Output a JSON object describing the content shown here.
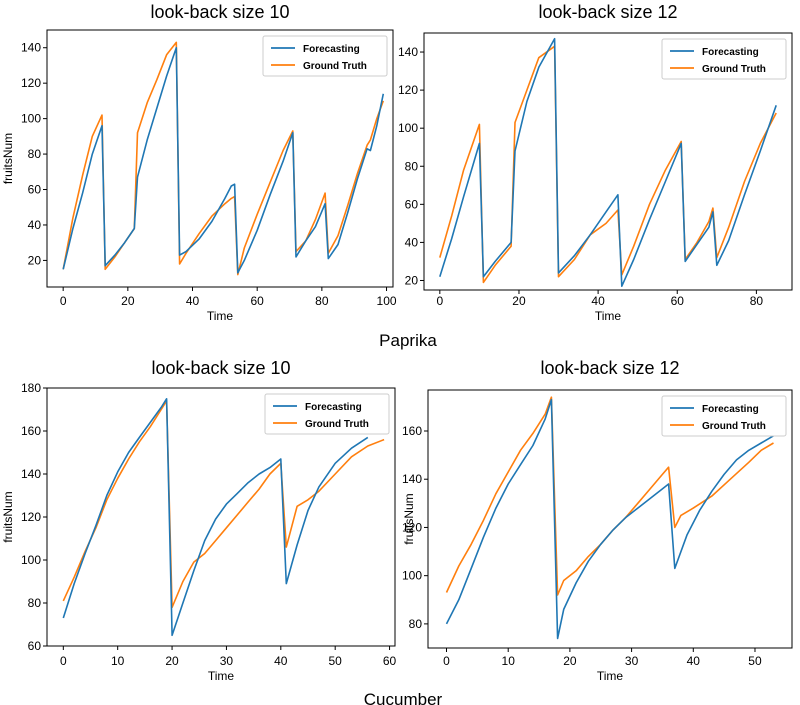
{
  "colors": {
    "forecasting": "#1f77b4",
    "ground_truth": "#ff7f0e"
  },
  "groups": [
    "Paprika",
    "Cucumber"
  ],
  "chart_data": [
    {
      "type": "line",
      "group": "Paprika",
      "title": "look-back  size  10",
      "xlabel": "Time",
      "ylabel": "fruitsNum",
      "xlim": [
        -5,
        102
      ],
      "ylim": [
        5,
        150
      ],
      "xticks": [
        "0",
        "20",
        "40",
        "60",
        "80",
        "100"
      ],
      "xtickvals": [
        0,
        20,
        40,
        60,
        80,
        100
      ],
      "yticks": [
        "20",
        "40",
        "60",
        "80",
        "100",
        "120",
        "140"
      ],
      "ytickvals": [
        20,
        40,
        60,
        80,
        100,
        120,
        140
      ],
      "legend": "top-right",
      "grid": false,
      "series": [
        {
          "name": "Forecasting",
          "x": [
            0,
            3,
            6,
            9,
            12,
            13,
            16,
            19,
            22,
            23,
            26,
            29,
            32,
            35,
            36,
            38,
            42,
            46,
            50,
            52,
            53,
            54,
            56,
            60,
            64,
            68,
            71,
            72,
            75,
            78,
            81,
            82,
            85,
            88,
            91,
            94,
            95,
            97,
            99
          ],
          "y": [
            15,
            38,
            58,
            80,
            96,
            17,
            23,
            30,
            38,
            67,
            88,
            106,
            124,
            140,
            23,
            25,
            32,
            42,
            55,
            62,
            63,
            13,
            20,
            37,
            57,
            76,
            92,
            22,
            31,
            39,
            52,
            21,
            29,
            47,
            66,
            83,
            82,
            96,
            114
          ]
        },
        {
          "name": "Ground Truth",
          "x": [
            0,
            3,
            6,
            9,
            12,
            13,
            16,
            19,
            22,
            23,
            26,
            29,
            32,
            35,
            36,
            38,
            42,
            46,
            50,
            52,
            53,
            54,
            56,
            60,
            64,
            68,
            71,
            72,
            75,
            78,
            81,
            82,
            85,
            88,
            91,
            94,
            95,
            97,
            99
          ],
          "y": [
            15,
            44,
            68,
            90,
            102,
            15,
            22,
            30,
            38,
            92,
            109,
            122,
            136,
            143,
            18,
            24,
            35,
            45,
            52,
            55,
            56,
            12,
            27,
            46,
            64,
            82,
            93,
            25,
            31,
            43,
            58,
            24,
            34,
            51,
            69,
            85,
            88,
            100,
            110
          ]
        }
      ]
    },
    {
      "type": "line",
      "group": "Paprika",
      "title": "look-back  size  12",
      "xlabel": "Time",
      "ylabel": "",
      "xlim": [
        -4,
        89
      ],
      "ylim": [
        15,
        150
      ],
      "xticks": [
        "0",
        "20",
        "40",
        "60",
        "80"
      ],
      "xtickvals": [
        0,
        20,
        40,
        60,
        80
      ],
      "yticks": [
        "20",
        "40",
        "60",
        "80",
        "100",
        "120",
        "140"
      ],
      "ytickvals": [
        20,
        40,
        60,
        80,
        100,
        120,
        140
      ],
      "legend": "top-right",
      "grid": false,
      "series": [
        {
          "name": "Forecasting",
          "x": [
            0,
            3,
            6,
            10,
            11,
            14,
            18,
            19,
            22,
            25,
            29,
            30,
            34,
            38,
            42,
            45,
            46,
            49,
            53,
            57,
            61,
            62,
            65,
            68,
            69,
            70,
            73,
            77,
            81,
            85
          ],
          "y": [
            22,
            42,
            64,
            92,
            22,
            30,
            40,
            88,
            114,
            132,
            147,
            24,
            33,
            44,
            56,
            65,
            17,
            31,
            52,
            72,
            92,
            30,
            39,
            48,
            56,
            28,
            41,
            65,
            88,
            112
          ]
        },
        {
          "name": "Ground Truth",
          "x": [
            0,
            3,
            6,
            10,
            11,
            14,
            18,
            19,
            22,
            25,
            29,
            30,
            34,
            38,
            42,
            45,
            46,
            49,
            53,
            57,
            61,
            62,
            65,
            68,
            69,
            70,
            73,
            77,
            81,
            85
          ],
          "y": [
            32,
            54,
            78,
            102,
            19,
            28,
            38,
            103,
            120,
            137,
            143,
            22,
            31,
            44,
            50,
            57,
            23,
            38,
            60,
            78,
            93,
            31,
            40,
            51,
            58,
            32,
            48,
            72,
            92,
            108
          ]
        }
      ]
    },
    {
      "type": "line",
      "group": "Cucumber",
      "title": "look-back  size  10",
      "xlabel": "Time",
      "ylabel": "fruitsNum",
      "xlim": [
        -3,
        61
      ],
      "ylim": [
        60,
        180
      ],
      "xticks": [
        "0",
        "10",
        "20",
        "30",
        "40",
        "50",
        "60"
      ],
      "xtickvals": [
        0,
        10,
        20,
        30,
        40,
        50,
        60
      ],
      "yticks": [
        "60",
        "80",
        "100",
        "120",
        "140",
        "160",
        "180"
      ],
      "ytickvals": [
        60,
        80,
        100,
        120,
        140,
        160,
        180
      ],
      "legend": "top-right",
      "grid": false,
      "series": [
        {
          "name": "Forecasting",
          "x": [
            0,
            2,
            4,
            6,
            8,
            10,
            12,
            14,
            16,
            18,
            19,
            20,
            22,
            24,
            26,
            28,
            30,
            32,
            34,
            36,
            38,
            40,
            41,
            43,
            45,
            47,
            50,
            53,
            56
          ],
          "y": [
            73,
            89,
            103,
            116,
            130,
            141,
            150,
            157,
            164,
            171,
            175,
            65,
            80,
            95,
            109,
            119,
            126,
            131,
            136,
            140,
            143,
            147,
            89,
            107,
            123,
            134,
            145,
            152,
            157
          ]
        },
        {
          "name": "Ground Truth",
          "x": [
            0,
            2,
            4,
            6,
            8,
            10,
            12,
            14,
            16,
            18,
            19,
            20,
            22,
            24,
            26,
            28,
            30,
            32,
            34,
            36,
            38,
            40,
            41,
            43,
            45,
            47,
            50,
            53,
            56,
            59
          ],
          "y": [
            81,
            92,
            104,
            115,
            128,
            138,
            147,
            155,
            162,
            170,
            174,
            78,
            90,
            99,
            103,
            109,
            115,
            121,
            127,
            133,
            140,
            145,
            106,
            125,
            128,
            132,
            140,
            148,
            153,
            156
          ]
        }
      ]
    },
    {
      "type": "line",
      "group": "Cucumber",
      "title": "look-back  size  12",
      "xlabel": "Time",
      "ylabel": "fruitsNum",
      "xlim": [
        -3,
        56
      ],
      "ylim": [
        70,
        177
      ],
      "xticks": [
        "0",
        "10",
        "20",
        "30",
        "40",
        "50"
      ],
      "xtickvals": [
        0,
        10,
        20,
        30,
        40,
        50
      ],
      "yticks": [
        "80",
        "100",
        "120",
        "140",
        "160"
      ],
      "ytickvals": [
        80,
        100,
        120,
        140,
        160
      ],
      "legend": "top-right",
      "grid": false,
      "series": [
        {
          "name": "Forecasting",
          "x": [
            0,
            2,
            4,
            6,
            8,
            10,
            12,
            14,
            16,
            17,
            18,
            19,
            21,
            23,
            25,
            27,
            29,
            31,
            33,
            35,
            36,
            37,
            39,
            41,
            43,
            45,
            47,
            49,
            51,
            53
          ],
          "y": [
            80,
            90,
            103,
            116,
            128,
            138,
            146,
            154,
            165,
            173,
            74,
            86,
            97,
            106,
            113,
            119,
            124,
            128,
            132,
            136,
            138,
            103,
            117,
            127,
            135,
            142,
            148,
            152,
            155,
            158
          ]
        },
        {
          "name": "Ground Truth",
          "x": [
            0,
            2,
            4,
            6,
            8,
            10,
            12,
            14,
            16,
            17,
            18,
            19,
            21,
            23,
            25,
            27,
            29,
            31,
            33,
            35,
            36,
            37,
            38,
            40,
            43,
            46,
            49,
            51,
            53
          ],
          "y": [
            93,
            104,
            113,
            123,
            134,
            143,
            152,
            159,
            167,
            174,
            92,
            98,
            102,
            108,
            113,
            119,
            124,
            130,
            136,
            142,
            145,
            120,
            125,
            128,
            133,
            140,
            147,
            152,
            155
          ]
        }
      ]
    }
  ]
}
